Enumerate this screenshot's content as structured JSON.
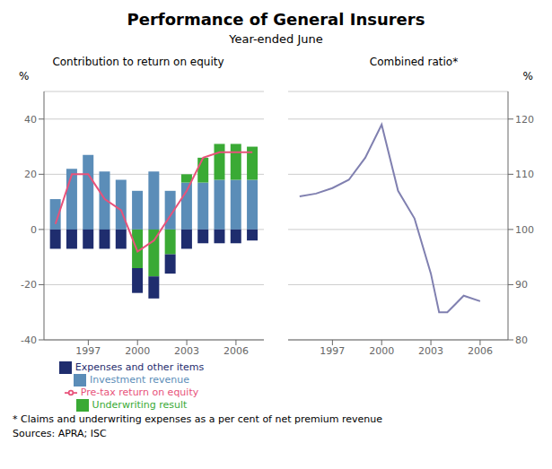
{
  "title": "Performance of General Insurers",
  "subtitle": "Year-ended June",
  "annotations": [
    "*  Claims and underwriting expenses as a per cent of net premium revenue",
    "Sources: APRA; ISC"
  ],
  "chart_data": [
    {
      "type": "bar",
      "title": "Contribution to return on equity",
      "y_label": "%",
      "stacked": true,
      "grid": true,
      "x": [
        1995,
        1996,
        1997,
        1998,
        1999,
        2000,
        2001,
        2002,
        2003,
        2004,
        2005,
        2006,
        2007
      ],
      "xlim": [
        1994.3,
        2007.7
      ],
      "xticks": [
        1997,
        2000,
        2003,
        2006
      ],
      "ylim": [
        -40,
        50
      ],
      "yticks": [
        -40,
        -20,
        0,
        20,
        40
      ],
      "series": [
        {
          "name": "Investment revenue",
          "type": "bar",
          "color": "#5b8db8",
          "values": [
            11,
            22,
            27,
            21,
            18,
            14,
            21,
            14,
            17,
            17,
            18,
            18,
            18
          ]
        },
        {
          "name": "Underwriting result",
          "type": "bar",
          "color": "#3aaa35",
          "values": [
            0,
            0,
            0,
            0,
            0,
            -14,
            -17,
            -9,
            3,
            9,
            13,
            13,
            12
          ]
        },
        {
          "name": "Expenses and other items",
          "type": "bar",
          "color": "#1f2d6e",
          "values": [
            -7,
            -7,
            -7,
            -7,
            -7,
            -9,
            -8,
            -7,
            -7,
            -5,
            -5,
            -5,
            -4
          ]
        },
        {
          "name": "Pre-tax return on equity",
          "type": "line",
          "color": "#e8527a",
          "values": [
            2,
            20,
            20,
            11,
            7,
            -8,
            -4,
            5,
            14,
            26,
            28,
            28,
            28
          ]
        }
      ]
    },
    {
      "type": "line",
      "title": "Combined ratio*",
      "y_label": "%",
      "grid": true,
      "x": [
        1995,
        1996,
        1997,
        1998,
        1999,
        2000,
        2001,
        2002,
        2003,
        2003.5,
        2004,
        2005,
        2006
      ],
      "xlim": [
        1994.3,
        2007.7
      ],
      "xticks": [
        1997,
        2000,
        2003,
        2006
      ],
      "ylim": [
        80,
        125
      ],
      "yticks": [
        80,
        90,
        100,
        110,
        120
      ],
      "series": [
        {
          "type": "line",
          "color": "#8080b0",
          "values": [
            106,
            106.5,
            107.5,
            109,
            113,
            119,
            107,
            102,
            92,
            85,
            85,
            88,
            87
          ]
        }
      ]
    }
  ]
}
